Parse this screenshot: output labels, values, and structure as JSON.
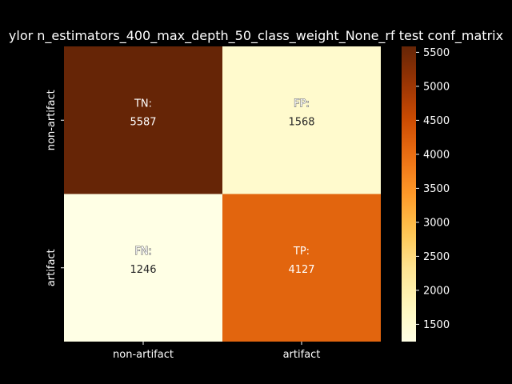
{
  "chart_data": {
    "type": "heatmap",
    "title": "ylor n_estimators_400_max_depth_50_class_weight_None_rf test conf_matrix",
    "xlabel": "",
    "ylabel": "",
    "x_categories": [
      "non-artifact",
      "artifact"
    ],
    "y_categories": [
      "non-artifact",
      "artifact"
    ],
    "cells": [
      {
        "label": "TN:",
        "value": 5587,
        "row": 0,
        "col": 0
      },
      {
        "label": "FP:",
        "value": 1568,
        "row": 0,
        "col": 1
      },
      {
        "label": "FN:",
        "value": 1246,
        "row": 1,
        "col": 0
      },
      {
        "label": "TP:",
        "value": 4127,
        "row": 1,
        "col": 1
      }
    ],
    "colormap": "YlOrBr",
    "color_range": [
      1246,
      5587
    ],
    "colorbar_ticks": [
      1500,
      2000,
      2500,
      3000,
      3500,
      4000,
      4500,
      5000,
      5500
    ],
    "grid": false
  }
}
